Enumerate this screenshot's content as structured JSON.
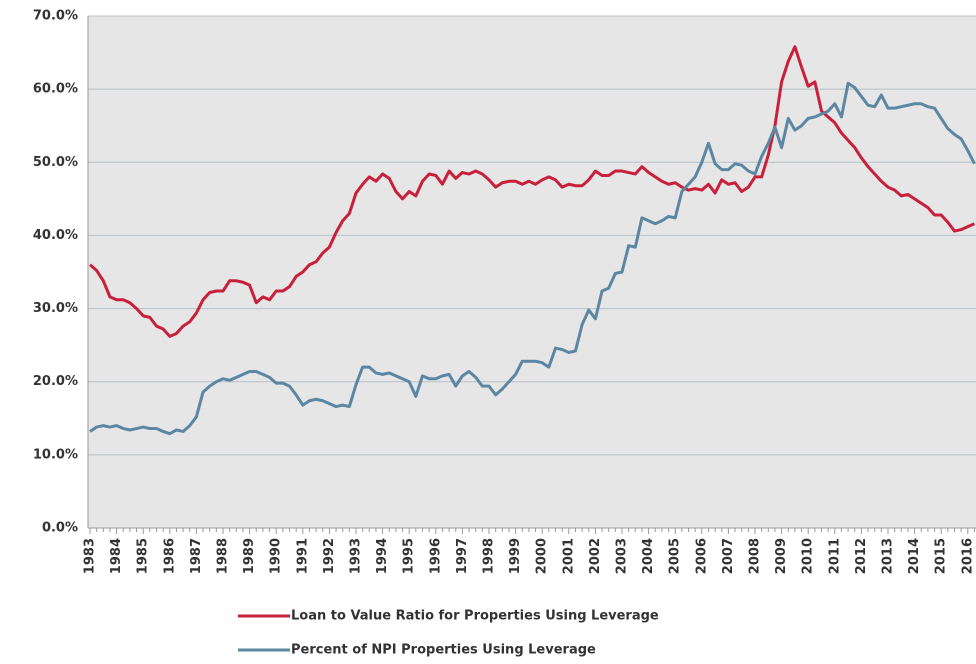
{
  "chart_data": {
    "type": "line",
    "categories": [
      "1983",
      null,
      null,
      null,
      "1984",
      null,
      null,
      null,
      "1985",
      null,
      null,
      null,
      "1986",
      null,
      null,
      null,
      "1987",
      null,
      null,
      null,
      "1988",
      null,
      null,
      null,
      "1989",
      null,
      null,
      null,
      "1990",
      null,
      null,
      null,
      "1991",
      null,
      null,
      null,
      "1992",
      null,
      null,
      null,
      "1993",
      null,
      null,
      null,
      "1994",
      null,
      null,
      null,
      "1995",
      null,
      null,
      null,
      "1996",
      null,
      null,
      null,
      "1997",
      null,
      null,
      null,
      "1998",
      null,
      null,
      null,
      "1999",
      null,
      null,
      null,
      "2000",
      null,
      null,
      null,
      "2001",
      null,
      null,
      null,
      "2002",
      null,
      null,
      null,
      "2003",
      null,
      null,
      null,
      "2004",
      null,
      null,
      null,
      "2005",
      null,
      null,
      null,
      "2006",
      null,
      null,
      null,
      "2007",
      null,
      null,
      null,
      "2008",
      null,
      null,
      null,
      "2009",
      null,
      null,
      null,
      "2010",
      null,
      null,
      null,
      "2011",
      null,
      null,
      null,
      "2012",
      null,
      null,
      null,
      "2013",
      null,
      null,
      null,
      "2014",
      null,
      null,
      null,
      "2015",
      null,
      null,
      null,
      "2016",
      null
    ],
    "series": [
      {
        "name": "Loan to Value Ratio for Properties Using Leverage",
        "color": "#c8203a",
        "values": [
          36,
          35.2,
          33.8,
          31.6,
          31.2,
          31.2,
          30.8,
          30,
          29,
          28.8,
          27.6,
          27.2,
          26.2,
          26.6,
          27.6,
          28.2,
          29.4,
          31.2,
          32.2,
          32.4,
          32.4,
          33.8,
          33.8,
          33.6,
          33.2,
          30.8,
          31.6,
          31.2,
          32.4,
          32.4,
          33,
          34.4,
          35,
          36,
          36.4,
          37.6,
          38.4,
          40.4,
          42,
          43,
          45.8,
          47,
          48,
          47.4,
          48.4,
          47.8,
          46,
          45,
          46,
          45.4,
          47.4,
          48.4,
          48.2,
          47,
          48.8,
          47.8,
          48.6,
          48.4,
          48.8,
          48.4,
          47.6,
          46.6,
          47.2,
          47.4,
          47.4,
          47,
          47.4,
          47,
          47.6,
          48,
          47.6,
          46.6,
          47,
          46.8,
          46.8,
          47.6,
          48.8,
          48.2,
          48.2,
          48.8,
          48.8,
          48.6,
          48.4,
          49.4,
          48.6,
          48,
          47.4,
          47,
          47.2,
          46.6,
          46.2,
          46.4,
          46.2,
          47,
          45.8,
          47.6,
          47,
          47.2,
          46,
          46.6,
          48,
          48,
          51,
          55,
          61,
          63.8,
          65.8,
          63,
          60.4,
          61,
          57,
          56.2,
          55.4,
          54,
          53,
          52,
          50.6,
          49.4,
          48.4,
          47.4,
          46.6,
          46.2,
          45.4,
          45.6,
          45,
          44.4,
          43.8,
          42.8,
          42.8,
          41.8,
          40.6,
          40.8,
          41.2,
          41.6
        ]
      },
      {
        "name": "Percent of NPI Properties Using Leverage",
        "color": "#5b87a2",
        "values": [
          13.2,
          13.8,
          14,
          13.8,
          14,
          13.6,
          13.4,
          13.6,
          13.8,
          13.6,
          13.6,
          13.2,
          12.9,
          13.4,
          13.2,
          14,
          15.2,
          18.6,
          19.4,
          20,
          20.4,
          20.2,
          20.6,
          21,
          21.4,
          21.4,
          21,
          20.6,
          19.8,
          19.8,
          19.4,
          18.2,
          16.8,
          17.4,
          17.6,
          17.4,
          17,
          16.6,
          16.8,
          16.6,
          19.6,
          22,
          22,
          21.2,
          21,
          21.2,
          20.8,
          20.4,
          20,
          18,
          20.8,
          20.4,
          20.4,
          20.8,
          21,
          19.4,
          20.8,
          21.4,
          20.6,
          19.4,
          19.4,
          18.2,
          19,
          20,
          21,
          22.8,
          22.8,
          22.8,
          22.6,
          22,
          24.6,
          24.4,
          24,
          24.2,
          27.8,
          29.8,
          28.6,
          32.4,
          32.8,
          34.8,
          35,
          38.6,
          38.4,
          42.4,
          42,
          41.6,
          42,
          42.6,
          42.4,
          46,
          47,
          48,
          50,
          52.6,
          49.8,
          49,
          49,
          49.8,
          49.6,
          48.8,
          48.4,
          50.8,
          52.6,
          54.8,
          52,
          56,
          54.4,
          55,
          56,
          56.2,
          56.6,
          57,
          58,
          56.2,
          60.8,
          60.2,
          59,
          57.8,
          57.6,
          59.2,
          57.4,
          57.4,
          57.6,
          57.8,
          58,
          58,
          57.6,
          57.4,
          56,
          54.6,
          53.8,
          53.2,
          51.6,
          49.8
        ]
      }
    ],
    "ylim": [
      0,
      70
    ],
    "yticks": [
      {
        "value": 0,
        "label": "0.0%"
      },
      {
        "value": 10,
        "label": "10.0%"
      },
      {
        "value": 20,
        "label": "20.0%"
      },
      {
        "value": 30,
        "label": "30.0%"
      },
      {
        "value": 40,
        "label": "40.0%"
      },
      {
        "value": 50,
        "label": "50.0%"
      },
      {
        "value": 60,
        "label": "60.0%"
      },
      {
        "value": 70,
        "label": "70.0%"
      }
    ],
    "grid": true
  }
}
